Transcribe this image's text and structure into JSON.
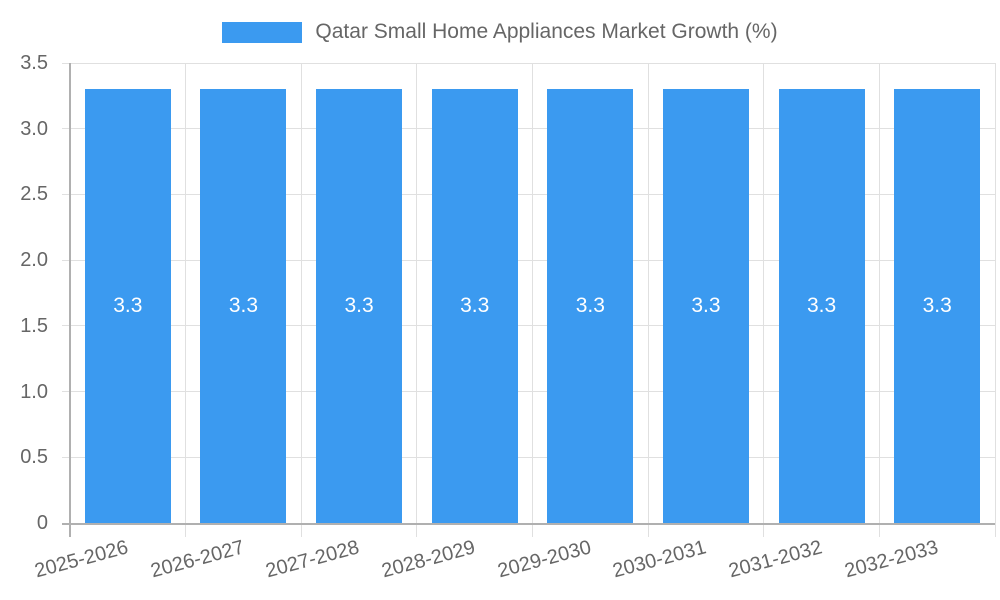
{
  "legend": {
    "label": "Qatar Small Home Appliances Market Growth (%)"
  },
  "chart_data": {
    "type": "bar",
    "title": "Qatar Small Home Appliances Market Growth (%)",
    "series_name": "Qatar Small Home Appliances Market Growth (%)",
    "categories": [
      "2025-2026",
      "2026-2027",
      "2027-2028",
      "2028-2029",
      "2029-2030",
      "2030-2031",
      "2031-2032",
      "2032-2033"
    ],
    "values": [
      3.3,
      3.3,
      3.3,
      3.3,
      3.3,
      3.3,
      3.3,
      3.3
    ],
    "bar_labels": [
      "3.3",
      "3.3",
      "3.3",
      "3.3",
      "3.3",
      "3.3",
      "3.3",
      "3.3"
    ],
    "y_ticks": [
      "0",
      "0.5",
      "1.0",
      "1.5",
      "2.0",
      "2.5",
      "3.0",
      "3.5"
    ],
    "ylim": [
      0,
      3.5
    ],
    "xlabel": "",
    "ylabel": "",
    "grid": true,
    "legend_position": "top-center",
    "bar_label_position": "middle",
    "xtick_rotation_deg": 15
  },
  "colors": {
    "bar": "#3b9af0",
    "grid": "#e0e0e0",
    "axis": "#b0b0b0",
    "tick_text": "#666666",
    "bar_label_text": "#ffffff",
    "background": "#ffffff"
  }
}
